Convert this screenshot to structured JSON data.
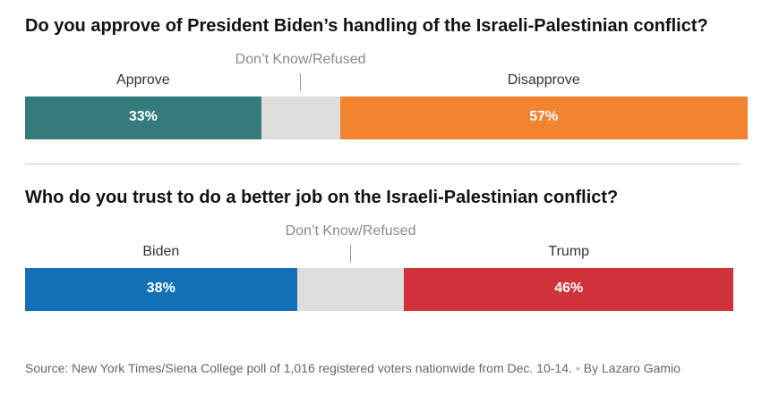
{
  "chart_data": [
    {
      "type": "bar",
      "title": "Do you approve of President Biden’s handling of the Israeli-Palestinian conflict?",
      "orientation": "stacked-horizontal",
      "xlim": [
        0,
        100
      ],
      "categories": [
        "Approve",
        "Don’t Know/Refused",
        "Disapprove"
      ],
      "values": [
        33,
        11,
        57
      ],
      "value_labels": [
        "33%",
        "",
        "57%"
      ],
      "colors": [
        "#367b7c",
        "#dddddd",
        "#f28430"
      ],
      "middle_label": "Don’t Know/Refused"
    },
    {
      "type": "bar",
      "title": "Who do you trust to do a better job on the Israeli-Palestinian conflict?",
      "orientation": "stacked-horizontal",
      "xlim": [
        0,
        100
      ],
      "categories": [
        "Biden",
        "Don’t Know/Refused",
        "Trump"
      ],
      "values": [
        38,
        15,
        46
      ],
      "value_labels": [
        "38%",
        "",
        "46%"
      ],
      "colors": [
        "#1470b6",
        "#dddddd",
        "#cf3339"
      ],
      "middle_label": "Don’t Know/Refused"
    }
  ],
  "source": {
    "text": "Source: New York Times/Siena College poll of 1,016 registered voters nationwide from Dec. 10-14.",
    "separator": "•",
    "byline": "By Lazaro Gamio"
  }
}
